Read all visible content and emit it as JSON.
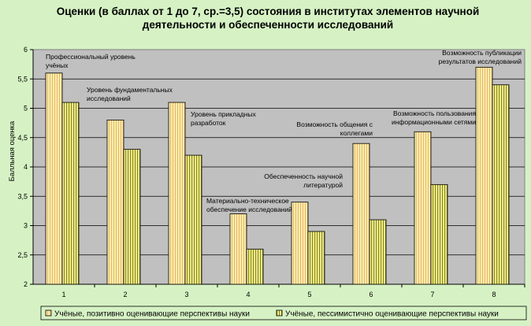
{
  "chart_data": {
    "type": "bar",
    "title": "Оценки (в баллах от 1 до 7, ср.=3,5) состояния в институтах элементов научной деятельности и обеспеченности исследований",
    "xlabel": "",
    "ylabel": "Балльная оценка",
    "ylim": [
      2,
      6
    ],
    "y_ticks": [
      "2",
      "2,5",
      "3",
      "3,5",
      "4",
      "4,5",
      "5",
      "5,5",
      "6"
    ],
    "categories": [
      "1",
      "2",
      "3",
      "4",
      "5",
      "6",
      "7",
      "8"
    ],
    "series": [
      {
        "name": "Учёные, позитивно оценивающие перспективы науки",
        "values": [
          5.6,
          4.8,
          5.1,
          3.2,
          3.4,
          4.4,
          4.6,
          5.7
        ]
      },
      {
        "name": "Учёные, пессимистично оценивающие перспективы науки",
        "values": [
          5.1,
          4.3,
          4.2,
          2.6,
          2.9,
          3.1,
          3.7,
          5.4
        ]
      }
    ],
    "annotations": [
      [
        "Профессиональный уровень",
        "учёных"
      ],
      [
        "Уровень фундаментальных",
        "исследований"
      ],
      [
        "Уровень прикладных",
        "разработок"
      ],
      [
        "Материально-техническое",
        "обеспечение исследований"
      ],
      [
        "Обеспеченность научной",
        "литературой"
      ],
      [
        "Возможность общения с",
        "коллегами"
      ],
      [
        "Возможность пользования",
        "информационными сетями"
      ],
      [
        "Возможность публикации",
        "результатов исследований"
      ]
    ],
    "grid": true,
    "legend_position": "bottom",
    "colors": {
      "background": "#d6f2c4",
      "plot_area": "#c0c0c0",
      "gridline": "#000000",
      "positive_fill": "#f4f0a8",
      "negative_fill": "#f4f0a8",
      "positive_stripe": "#f0b070",
      "negative_stripe": "#a0a000"
    }
  }
}
